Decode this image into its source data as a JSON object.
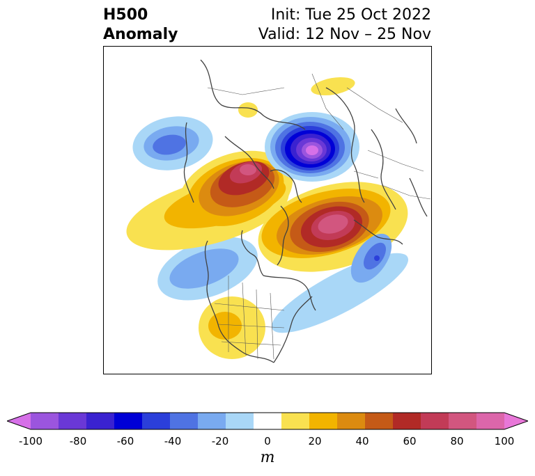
{
  "title": {
    "left_line1": "H500",
    "left_line2": "Anomaly",
    "right_line1": "Init: Tue 25 Oct 2022",
    "right_line2": "Valid: 12 Nov – 25 Nov"
  },
  "colorbar": {
    "unit": "m",
    "ticks": [
      "-100",
      "-80",
      "-60",
      "-40",
      "-20",
      "0",
      "20",
      "40",
      "60",
      "80",
      "100"
    ],
    "colors": [
      "#d670e8",
      "#9b55de",
      "#6a38d6",
      "#3a22d0",
      "#0000d6",
      "#2b3fda",
      "#4f73e3",
      "#79aaf0",
      "#a9d7f7",
      "#ffffff",
      "#f9e150",
      "#f2b400",
      "#dc8b10",
      "#c55a17",
      "#b12a26",
      "#c23b57",
      "#d2567f",
      "#dc66aa",
      "#e877d8"
    ]
  },
  "map": {
    "type": "polar-stereographic-hemisphere",
    "anomalies": [
      {
        "name": "aleutian-negative",
        "sign": "negative",
        "peak_m": -50
      },
      {
        "name": "siberian-arctic-low",
        "sign": "negative",
        "peak_m": -100
      },
      {
        "name": "western-canada-ridge",
        "sign": "positive",
        "peak_m": 80
      },
      {
        "name": "scandinavia-ridge",
        "sign": "positive",
        "peak_m": 80
      },
      {
        "name": "north-atlantic-low",
        "sign": "negative",
        "peak_m": -50
      },
      {
        "name": "eastern-pacific-trough",
        "sign": "negative",
        "peak_m": -40
      },
      {
        "name": "southern-us-ridge",
        "sign": "positive",
        "peak_m": 30
      },
      {
        "name": "east-siberia-weak-ridge",
        "sign": "positive",
        "peak_m": 20
      }
    ]
  }
}
